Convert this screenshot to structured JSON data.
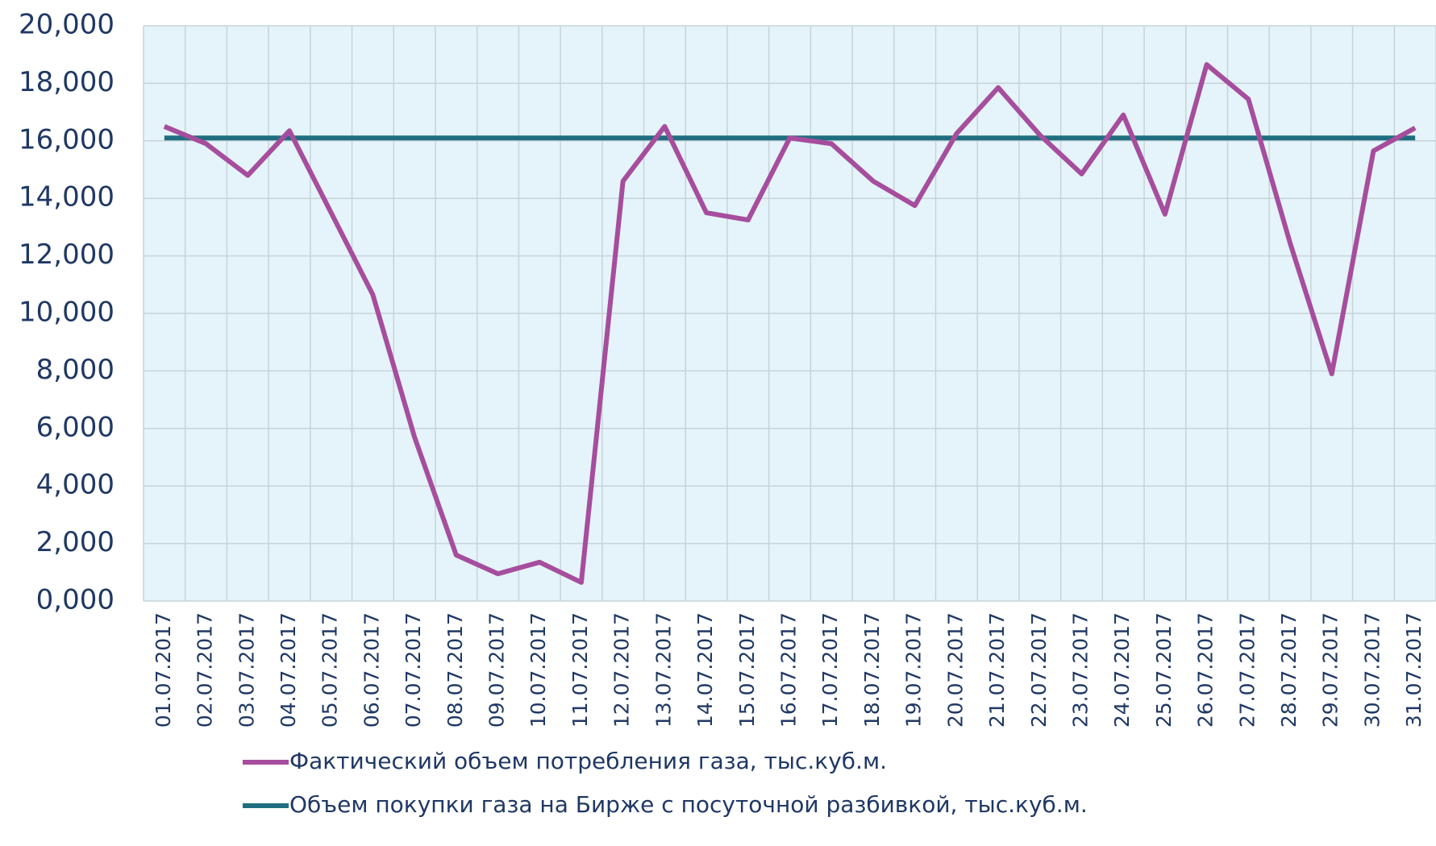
{
  "chart_data": {
    "type": "line",
    "categories": [
      "01.07.2017",
      "02.07.2017",
      "03.07.2017",
      "04.07.2017",
      "05.07.2017",
      "06.07.2017",
      "07.07.2017",
      "08.07.2017",
      "09.07.2017",
      "10.07.2017",
      "11.07.2017",
      "12.07.2017",
      "13.07.2017",
      "14.07.2017",
      "15.07.2017",
      "16.07.2017",
      "17.07.2017",
      "18.07.2017",
      "19.07.2017",
      "20.07.2017",
      "21.07.2017",
      "22.07.2017",
      "23.07.2017",
      "24.07.2017",
      "25.07.2017",
      "26.07.2017",
      "27.07.2017",
      "28.07.2017",
      "29.07.2017",
      "30.07.2017",
      "31.07.2017"
    ],
    "series": [
      {
        "name": "Фактический объем потребления газа, тыс.куб.м.",
        "color": "#a64d9d",
        "values": [
          16500,
          15900,
          14800,
          16350,
          13500,
          10650,
          5700,
          1600,
          950,
          1350,
          650,
          14600,
          16500,
          13500,
          13250,
          16100,
          15900,
          14600,
          13750,
          16250,
          17850,
          16200,
          14850,
          16900,
          13450,
          18650,
          17450,
          12450,
          7900,
          15650,
          16450
        ]
      },
      {
        "name": "Объем покупки газа на Бирже с посуточной разбивкой, тыс.куб.м.",
        "color": "#1f6e80",
        "values": [
          16100,
          16100,
          16100,
          16100,
          16100,
          16100,
          16100,
          16100,
          16100,
          16100,
          16100,
          16100,
          16100,
          16100,
          16100,
          16100,
          16100,
          16100,
          16100,
          16100,
          16100,
          16100,
          16100,
          16100,
          16100,
          16100,
          16100,
          16100,
          16100,
          16100,
          16100
        ]
      }
    ],
    "ylim": [
      0,
      20000
    ],
    "yticks": [
      {
        "value": 0,
        "label": "0,000"
      },
      {
        "value": 2000,
        "label": "2,000"
      },
      {
        "value": 4000,
        "label": "4,000"
      },
      {
        "value": 6000,
        "label": "6,000"
      },
      {
        "value": 8000,
        "label": "8,000"
      },
      {
        "value": 10000,
        "label": "10,000"
      },
      {
        "value": 12000,
        "label": "12,000"
      },
      {
        "value": 14000,
        "label": "14,000"
      },
      {
        "value": 16000,
        "label": "16,000"
      },
      {
        "value": 18000,
        "label": "18,000"
      },
      {
        "value": 20000,
        "label": "20,000"
      }
    ],
    "grid": true,
    "legend": "bottom"
  }
}
